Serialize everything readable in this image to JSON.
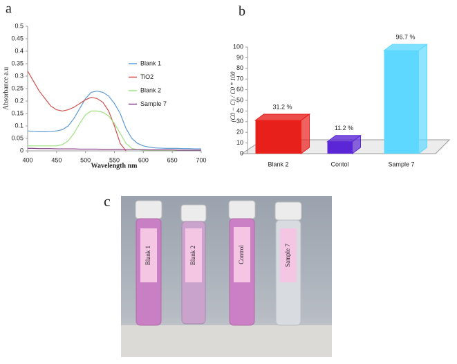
{
  "chart_data": [
    {
      "type": "line",
      "panel_label": "a",
      "xlabel": "Wavelength nm",
      "ylabel": "Absorbance a.u",
      "x": [
        400,
        410,
        420,
        430,
        440,
        450,
        460,
        470,
        480,
        490,
        500,
        510,
        520,
        530,
        540,
        550,
        560,
        570,
        580,
        590,
        600,
        610,
        620,
        630,
        640,
        650,
        660,
        670,
        680,
        690,
        700
      ],
      "series": [
        {
          "name": "Blank 1",
          "color": "#5b9bd5",
          "values": [
            0.08,
            0.078,
            0.077,
            0.077,
            0.078,
            0.08,
            0.085,
            0.1,
            0.13,
            0.17,
            0.21,
            0.235,
            0.24,
            0.235,
            0.22,
            0.19,
            0.15,
            0.09,
            0.05,
            0.03,
            0.02,
            0.015,
            0.012,
            0.011,
            0.01,
            0.01,
            0.01,
            0.009,
            0.009,
            0.008,
            0.008
          ]
        },
        {
          "name": "TiO2",
          "color": "#d0504d",
          "values": [
            0.32,
            0.28,
            0.24,
            0.21,
            0.18,
            0.165,
            0.16,
            0.165,
            0.175,
            0.19,
            0.205,
            0.215,
            0.21,
            0.195,
            0.16,
            0.1,
            0.03,
            0,
            null,
            null,
            null,
            null,
            null,
            null,
            null,
            null,
            null,
            null,
            null,
            null,
            null
          ]
        },
        {
          "name": "Blank 2",
          "color": "#9ee27e",
          "values": [
            0.02,
            0.02,
            0.02,
            0.02,
            0.02,
            0.02,
            0.025,
            0.04,
            0.07,
            0.11,
            0.145,
            0.16,
            0.16,
            0.155,
            0.14,
            0.11,
            0.07,
            0.03,
            0.01,
            0.005,
            0.003,
            0.003,
            0.003,
            0.003,
            0.003,
            0.003,
            0.003,
            0.003,
            0.003,
            0.003,
            0.003
          ]
        },
        {
          "name": "Sample 7",
          "color": "#8a3f86",
          "values": [
            0.01,
            0.01,
            0.009,
            0.009,
            0.009,
            0.008,
            0.008,
            0.008,
            0.008,
            0.007,
            0.007,
            0.007,
            0.007,
            0.006,
            0.006,
            0.006,
            0.006,
            0.005,
            0.005,
            0.005,
            0.005,
            0.004,
            0.004,
            0.004,
            0.004,
            0.004,
            0.003,
            0.003,
            0.003,
            0.003,
            0.003
          ]
        }
      ],
      "xlim": [
        400,
        700
      ],
      "xticks": [
        400,
        450,
        500,
        550,
        600,
        650,
        700
      ],
      "ylim": [
        0,
        0.5
      ],
      "yticks": [
        0,
        0.05,
        0.1,
        0.15,
        0.2,
        0.25,
        0.3,
        0.35,
        0.4,
        0.45,
        0.5
      ],
      "legend": "right"
    },
    {
      "type": "bar",
      "panel_label": "b",
      "ylabel": "(C0 − C) / C0 * 100",
      "categories": [
        "Blank 2",
        "Contol",
        "Sample 7"
      ],
      "values": [
        31.2,
        11.2,
        96.7
      ],
      "value_labels": [
        "31.2 %",
        "11.2 %",
        "96.7 %"
      ],
      "colors": [
        "#e8201c",
        "#5a26d6",
        "#5fd8ff"
      ],
      "ylim": [
        0,
        100
      ],
      "yticks": [
        0,
        10,
        20,
        30,
        40,
        50,
        60,
        70,
        80,
        90,
        100
      ]
    }
  ],
  "photo": {
    "panel_label": "c",
    "tube_labels": [
      "Blank 1",
      "Blank 2",
      "Control",
      "Sample 7"
    ]
  }
}
